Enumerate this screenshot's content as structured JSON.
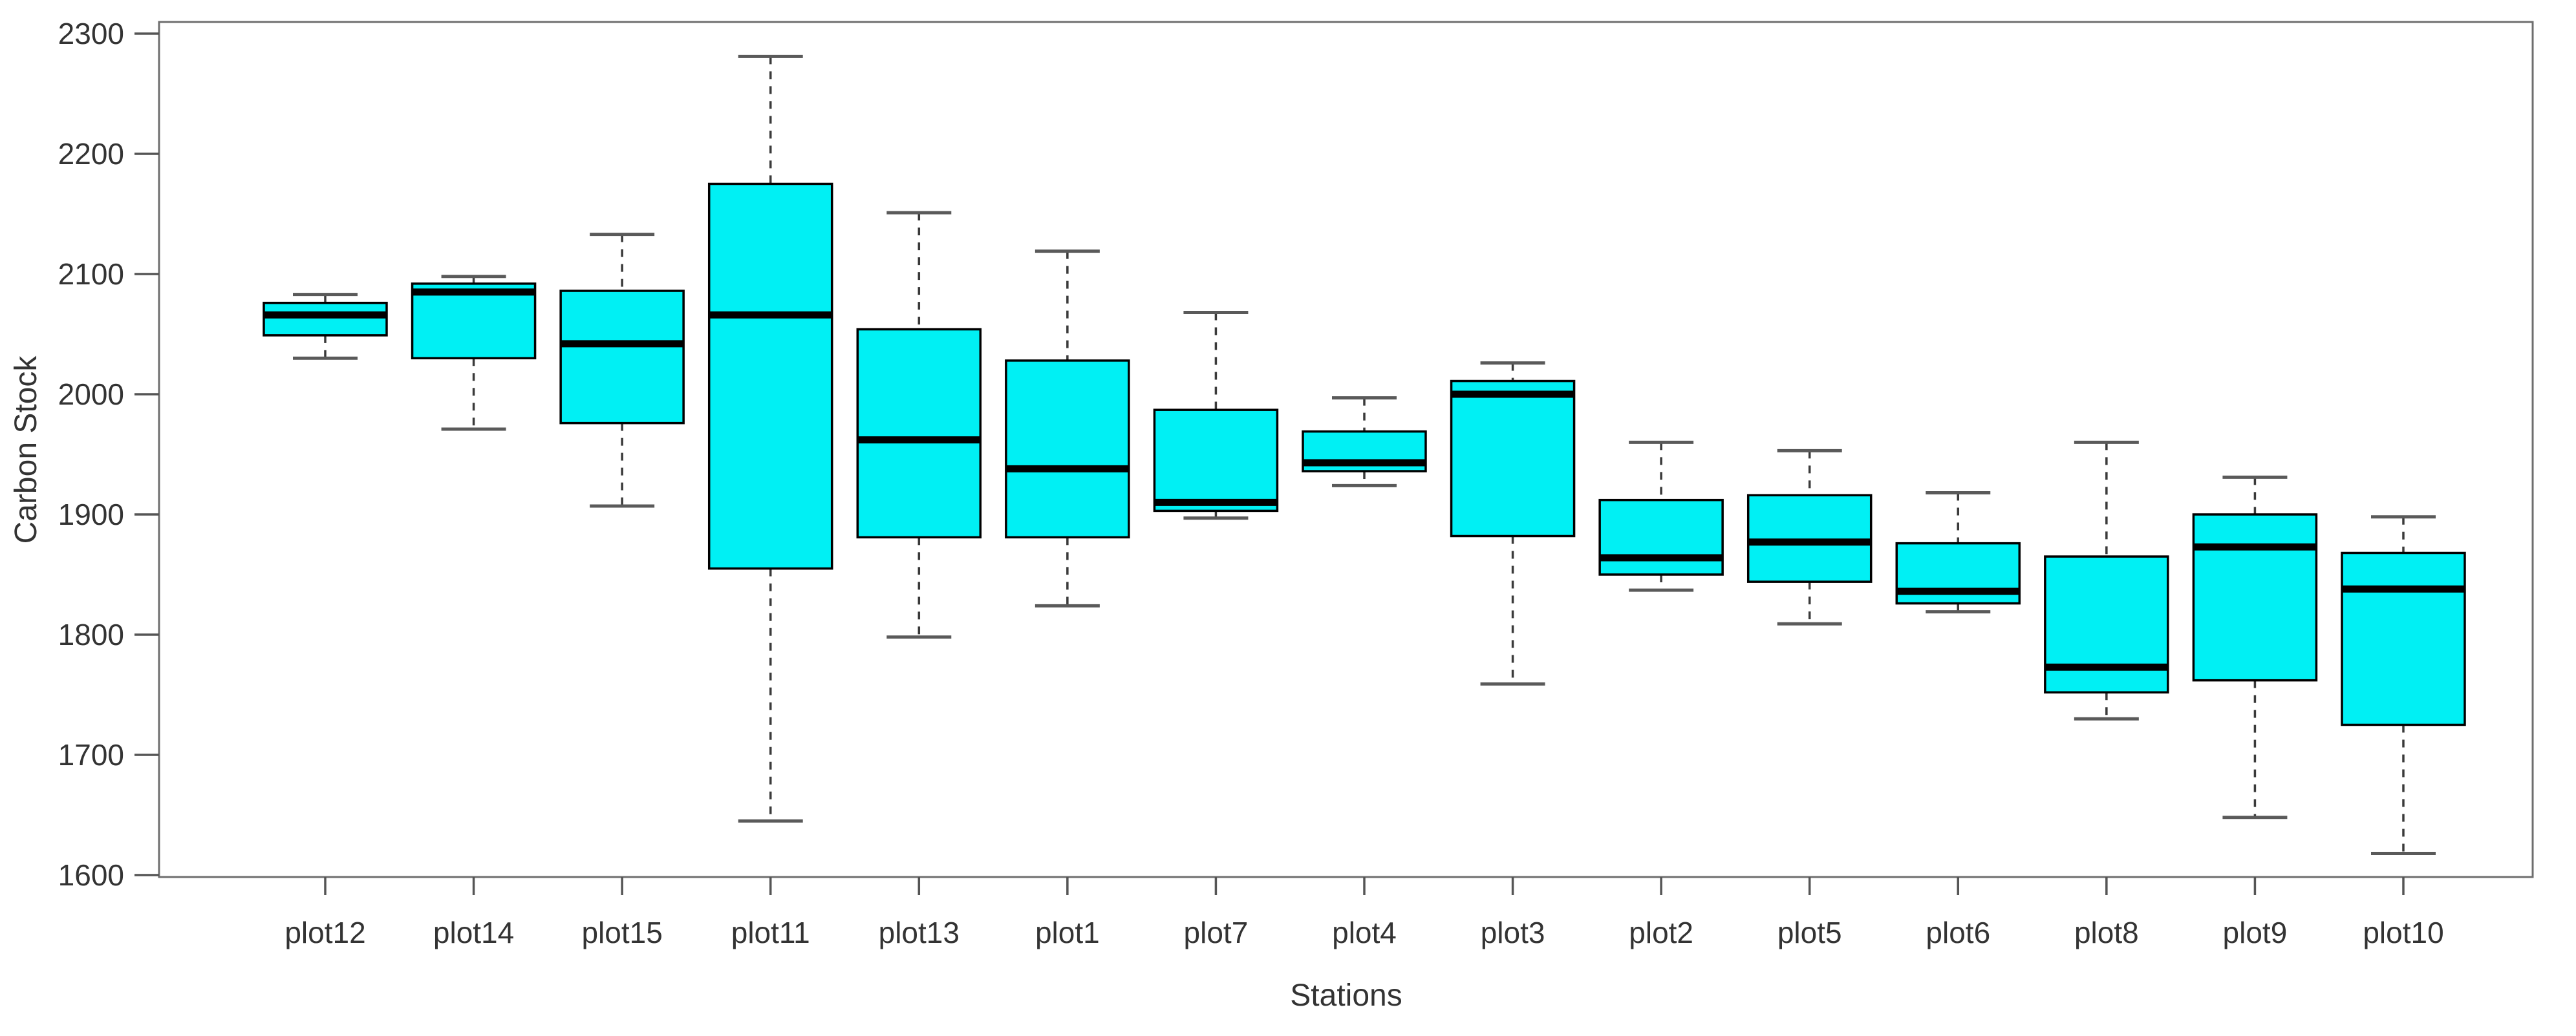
{
  "figure": {
    "background": "#ffffff"
  },
  "chart_data": {
    "type": "boxplot",
    "title": "",
    "xlabel": "Stations",
    "ylabel": "Carbon Stock",
    "ylim": [
      1600,
      2300
    ],
    "yticks": [
      2300,
      2200,
      2100,
      2000,
      1900,
      1800,
      1700,
      1600
    ],
    "grid": false,
    "legend": null,
    "categories": [
      "plot12",
      "plot14",
      "plot15",
      "plot11",
      "plot13",
      "plot1",
      "plot7",
      "plot4",
      "plot3",
      "plot2",
      "plot5",
      "plot6",
      "plot8",
      "plot9",
      "plot10"
    ],
    "boxes": [
      {
        "label": "plot12",
        "min": 2030,
        "q1": 2049,
        "median": 2066,
        "q3": 2076,
        "max": 2083
      },
      {
        "label": "plot14",
        "min": 1971,
        "q1": 2030,
        "median": 2085,
        "q3": 2092,
        "max": 2098
      },
      {
        "label": "plot15",
        "min": 1907,
        "q1": 1976,
        "median": 2042,
        "q3": 2086,
        "max": 2133
      },
      {
        "label": "plot11",
        "min": 1645,
        "q1": 1855,
        "median": 2066,
        "q3": 2175,
        "max": 2281
      },
      {
        "label": "plot13",
        "min": 1798,
        "q1": 1881,
        "median": 1962,
        "q3": 2054,
        "max": 2151
      },
      {
        "label": "plot1",
        "min": 1824,
        "q1": 1881,
        "median": 1938,
        "q3": 2028,
        "max": 2119
      },
      {
        "label": "plot7",
        "min": 1897,
        "q1": 1903,
        "median": 1910,
        "q3": 1987,
        "max": 2068
      },
      {
        "label": "plot4",
        "min": 1924,
        "q1": 1936,
        "median": 1943,
        "q3": 1969,
        "max": 1997
      },
      {
        "label": "plot3",
        "min": 1759,
        "q1": 1882,
        "median": 2000,
        "q3": 2011,
        "max": 2026
      },
      {
        "label": "plot2",
        "min": 1837,
        "q1": 1850,
        "median": 1864,
        "q3": 1912,
        "max": 1960
      },
      {
        "label": "plot5",
        "min": 1809,
        "q1": 1844,
        "median": 1877,
        "q3": 1916,
        "max": 1953
      },
      {
        "label": "plot6",
        "min": 1819,
        "q1": 1826,
        "median": 1836,
        "q3": 1876,
        "max": 1918
      },
      {
        "label": "plot8",
        "min": 1730,
        "q1": 1752,
        "median": 1773,
        "q3": 1865,
        "max": 1960
      },
      {
        "label": "plot9",
        "min": 1648,
        "q1": 1762,
        "median": 1873,
        "q3": 1900,
        "max": 1931
      },
      {
        "label": "plot10",
        "min": 1618,
        "q1": 1725,
        "median": 1838,
        "q3": 1868,
        "max": 1898
      }
    ],
    "style": {
      "box_fill": "#00f0f4",
      "box_stroke": "#000000",
      "median_color": "#000000",
      "whisker_color": "#3a3a3a",
      "cap_color": "#5a5a5a",
      "frame_color": "#6e6e6e",
      "tick_color": "#555555",
      "text_color": "#333333"
    }
  }
}
